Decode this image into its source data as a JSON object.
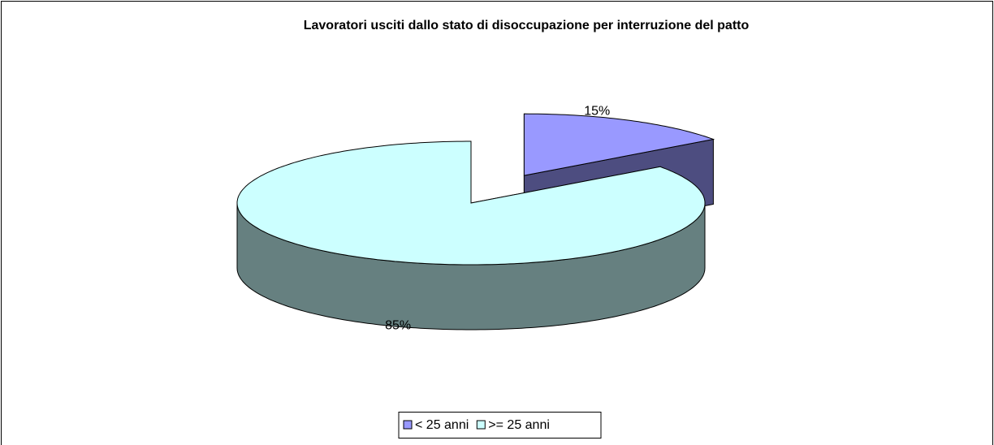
{
  "chart_data": {
    "type": "pie",
    "title": "Lavoratori usciti dallo stato di disoccupazione per interruzione del patto",
    "categories": [
      "< 25 anni",
      ">= 25 anni"
    ],
    "values": [
      15,
      85
    ],
    "value_labels": [
      "15%",
      "85%"
    ],
    "colors": [
      "#9999ff",
      "#ccffff"
    ],
    "legend": "bottom"
  }
}
